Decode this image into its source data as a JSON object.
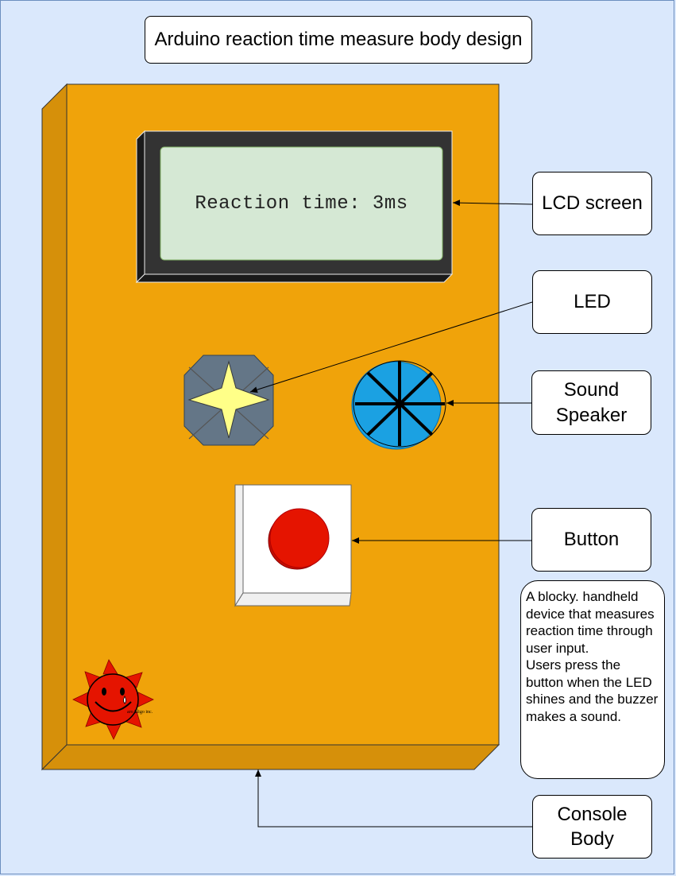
{
  "title": "Arduino reaction time measure body design",
  "lcd": {
    "display_text": "Reaction time: 3ms"
  },
  "labels": {
    "lcd_screen": "LCD screen",
    "led": "LED",
    "speaker_line1": "Sound",
    "speaker_line2": "Speaker",
    "button": "Button",
    "console_line1": "Console",
    "console_line2": "Body"
  },
  "description": {
    "paragraph1": "A blocky. handheld device that measures reaction time through user input.",
    "paragraph2": "Users press the button when the LED shines and the buzzer makes a sound."
  },
  "logo": {
    "text": "aro Sligo inc."
  },
  "colors": {
    "background": "#dae8fc",
    "body_front": "#f0a30a",
    "body_side": "#d6900a",
    "lcd_frame": "#333333",
    "lcd_screen": "#d5e8d4",
    "led_body": "#647687",
    "led_star": "#ffff88",
    "speaker": "#1ba1e2",
    "button_red": "#e51400",
    "logo_red": "#e51400"
  }
}
